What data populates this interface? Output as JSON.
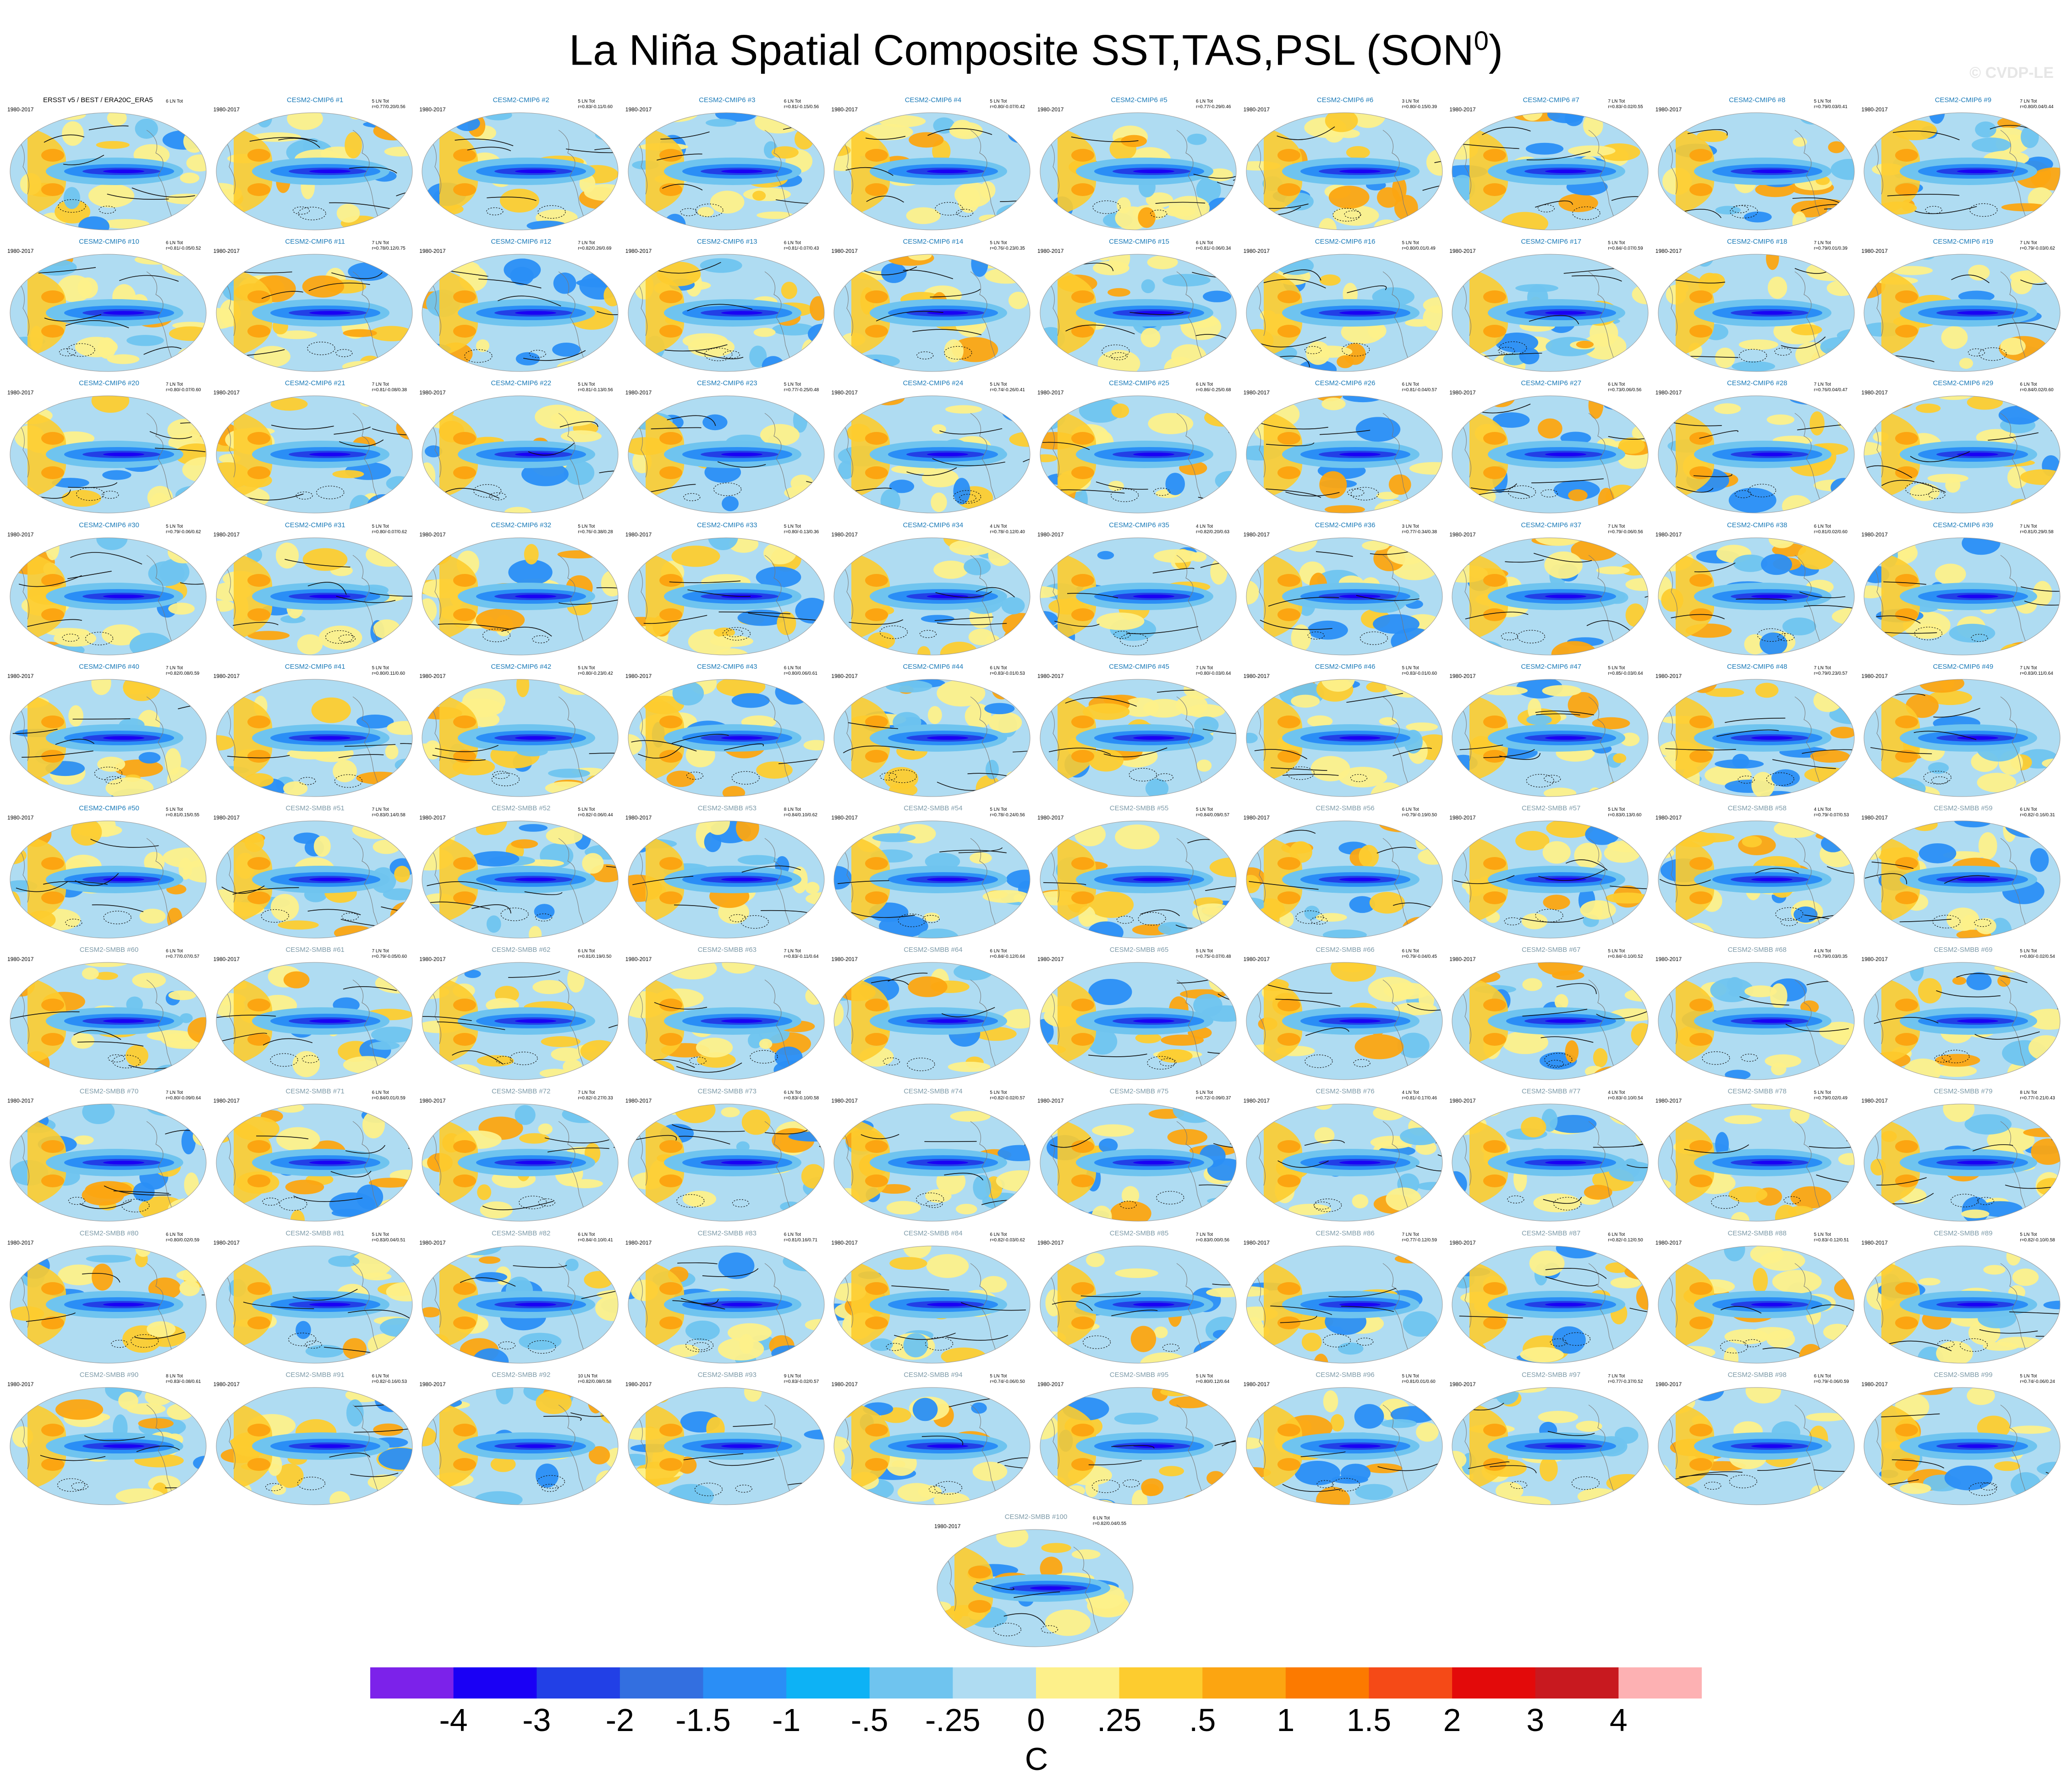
{
  "figure": {
    "title_main": "La Niña Spatial Composite SST,TAS,PSL (SON",
    "title_sup": "0",
    "title_close": ")",
    "copyright": "© CVDP-LE"
  },
  "panels": [
    {
      "name": "ERSST v5 / BEST / ERA20C_ERA5",
      "years": "1980-2017",
      "count": "6 LN Tot",
      "stats": "",
      "kind": "obs"
    },
    {
      "name": "CESM2-CMIP6 #1",
      "years": "1980-2017",
      "count": "5 LN Tot",
      "stats": "r=0.77/0.20/0.56",
      "kind": "cmip6"
    },
    {
      "name": "CESM2-CMIP6 #2",
      "years": "1980-2017",
      "count": "5 LN Tot",
      "stats": "r=0.83/-0.11/0.60",
      "kind": "cmip6"
    },
    {
      "name": "CESM2-CMIP6 #3",
      "years": "1980-2017",
      "count": "6 LN Tot",
      "stats": "r=0.81/-0.15/0.56",
      "kind": "cmip6"
    },
    {
      "name": "CESM2-CMIP6 #4",
      "years": "1980-2017",
      "count": "5 LN Tot",
      "stats": "r=0.80/-0.07/0.42",
      "kind": "cmip6"
    },
    {
      "name": "CESM2-CMIP6 #5",
      "years": "1980-2017",
      "count": "6 LN Tot",
      "stats": "r=0.77/-0.29/0.46",
      "kind": "cmip6"
    },
    {
      "name": "CESM2-CMIP6 #6",
      "years": "1980-2017",
      "count": "3 LN Tot",
      "stats": "r=0.80/-0.15/0.39",
      "kind": "cmip6"
    },
    {
      "name": "CESM2-CMIP6 #7",
      "years": "1980-2017",
      "count": "7 LN Tot",
      "stats": "r=0.83/-0.02/0.55",
      "kind": "cmip6"
    },
    {
      "name": "CESM2-CMIP6 #8",
      "years": "1980-2017",
      "count": "5 LN Tot",
      "stats": "r=0.79/0.03/0.41",
      "kind": "cmip6"
    },
    {
      "name": "CESM2-CMIP6 #9",
      "years": "1980-2017",
      "count": "7 LN Tot",
      "stats": "r=0.80/0.04/0.44",
      "kind": "cmip6"
    },
    {
      "name": "CESM2-CMIP6 #10",
      "years": "1980-2017",
      "count": "6 LN Tot",
      "stats": "r=0.81/-0.05/0.52",
      "kind": "cmip6"
    },
    {
      "name": "CESM2-CMIP6 #11",
      "years": "1980-2017",
      "count": "7 LN Tot",
      "stats": "r=0.78/0.12/0.75",
      "kind": "cmip6"
    },
    {
      "name": "CESM2-CMIP6 #12",
      "years": "1980-2017",
      "count": "7 LN Tot",
      "stats": "r=0.82/0.26/0.69",
      "kind": "cmip6"
    },
    {
      "name": "CESM2-CMIP6 #13",
      "years": "1980-2017",
      "count": "6 LN Tot",
      "stats": "r=0.81/-0.07/0.43",
      "kind": "cmip6"
    },
    {
      "name": "CESM2-CMIP6 #14",
      "years": "1980-2017",
      "count": "5 LN Tot",
      "stats": "r=0.76/-0.23/0.35",
      "kind": "cmip6"
    },
    {
      "name": "CESM2-CMIP6 #15",
      "years": "1980-2017",
      "count": "6 LN Tot",
      "stats": "r=0.81/-0.06/0.34",
      "kind": "cmip6"
    },
    {
      "name": "CESM2-CMIP6 #16",
      "years": "1980-2017",
      "count": "5 LN Tot",
      "stats": "r=0.80/0.01/0.49",
      "kind": "cmip6"
    },
    {
      "name": "CESM2-CMIP6 #17",
      "years": "1980-2017",
      "count": "5 LN Tot",
      "stats": "r=0.84/-0.07/0.59",
      "kind": "cmip6"
    },
    {
      "name": "CESM2-CMIP6 #18",
      "years": "1980-2017",
      "count": "7 LN Tot",
      "stats": "r=0.79/0.01/0.39",
      "kind": "cmip6"
    },
    {
      "name": "CESM2-CMIP6 #19",
      "years": "1980-2017",
      "count": "7 LN Tot",
      "stats": "r=0.79/-0.03/0.62",
      "kind": "cmip6"
    },
    {
      "name": "CESM2-CMIP6 #20",
      "years": "1980-2017",
      "count": "7 LN Tot",
      "stats": "r=0.80/-0.07/0.60",
      "kind": "cmip6"
    },
    {
      "name": "CESM2-CMIP6 #21",
      "years": "1980-2017",
      "count": "7 LN Tot",
      "stats": "r=0.81/-0.08/0.38",
      "kind": "cmip6"
    },
    {
      "name": "CESM2-CMIP6 #22",
      "years": "1980-2017",
      "count": "5 LN Tot",
      "stats": "r=0.81/-0.13/0.56",
      "kind": "cmip6"
    },
    {
      "name": "CESM2-CMIP6 #23",
      "years": "1980-2017",
      "count": "5 LN Tot",
      "stats": "r=0.77/-0.25/0.48",
      "kind": "cmip6"
    },
    {
      "name": "CESM2-CMIP6 #24",
      "years": "1980-2017",
      "count": "5 LN Tot",
      "stats": "r=0.74/-0.26/0.41",
      "kind": "cmip6"
    },
    {
      "name": "CESM2-CMIP6 #25",
      "years": "1980-2017",
      "count": "6 LN Tot",
      "stats": "r=0.86/-0.25/0.68",
      "kind": "cmip6"
    },
    {
      "name": "CESM2-CMIP6 #26",
      "years": "1980-2017",
      "count": "6 LN Tot",
      "stats": "r=0.81/-0.04/0.57",
      "kind": "cmip6"
    },
    {
      "name": "CESM2-CMIP6 #27",
      "years": "1980-2017",
      "count": "6 LN Tot",
      "stats": "r=0.73/0.06/0.56",
      "kind": "cmip6"
    },
    {
      "name": "CESM2-CMIP6 #28",
      "years": "1980-2017",
      "count": "7 LN Tot",
      "stats": "r=0.76/0.04/0.47",
      "kind": "cmip6"
    },
    {
      "name": "CESM2-CMIP6 #29",
      "years": "1980-2017",
      "count": "6 LN Tot",
      "stats": "r=0.84/0.02/0.60",
      "kind": "cmip6"
    },
    {
      "name": "CESM2-CMIP6 #30",
      "years": "1980-2017",
      "count": "5 LN Tot",
      "stats": "r=0.79/-0.06/0.62",
      "kind": "cmip6"
    },
    {
      "name": "CESM2-CMIP6 #31",
      "years": "1980-2017",
      "count": "5 LN Tot",
      "stats": "r=0.80/-0.07/0.62",
      "kind": "cmip6"
    },
    {
      "name": "CESM2-CMIP6 #32",
      "years": "1980-2017",
      "count": "5 LN Tot",
      "stats": "r=0.76/-0.38/0.28",
      "kind": "cmip6"
    },
    {
      "name": "CESM2-CMIP6 #33",
      "years": "1980-2017",
      "count": "5 LN Tot",
      "stats": "r=0.80/-0.13/0.36",
      "kind": "cmip6"
    },
    {
      "name": "CESM2-CMIP6 #34",
      "years": "1980-2017",
      "count": "4 LN Tot",
      "stats": "r=0.78/-0.12/0.40",
      "kind": "cmip6"
    },
    {
      "name": "CESM2-CMIP6 #35",
      "years": "1980-2017",
      "count": "4 LN Tot",
      "stats": "r=0.82/0.20/0.63",
      "kind": "cmip6"
    },
    {
      "name": "CESM2-CMIP6 #36",
      "years": "1980-2017",
      "count": "3 LN Tot",
      "stats": "r=0.77/-0.34/0.38",
      "kind": "cmip6"
    },
    {
      "name": "CESM2-CMIP6 #37",
      "years": "1980-2017",
      "count": "7 LN Tot",
      "stats": "r=0.79/-0.06/0.56",
      "kind": "cmip6"
    },
    {
      "name": "CESM2-CMIP6 #38",
      "years": "1980-2017",
      "count": "6 LN Tot",
      "stats": "r=0.81/0.02/0.60",
      "kind": "cmip6"
    },
    {
      "name": "CESM2-CMIP6 #39",
      "years": "1980-2017",
      "count": "7 LN Tot",
      "stats": "r=0.81/0.29/0.58",
      "kind": "cmip6"
    },
    {
      "name": "CESM2-CMIP6 #40",
      "years": "1980-2017",
      "count": "7 LN Tot",
      "stats": "r=0.82/0.08/0.59",
      "kind": "cmip6"
    },
    {
      "name": "CESM2-CMIP6 #41",
      "years": "1980-2017",
      "count": "5 LN Tot",
      "stats": "r=0.80/0.11/0.60",
      "kind": "cmip6"
    },
    {
      "name": "CESM2-CMIP6 #42",
      "years": "1980-2017",
      "count": "5 LN Tot",
      "stats": "r=0.80/-0.23/0.42",
      "kind": "cmip6"
    },
    {
      "name": "CESM2-CMIP6 #43",
      "years": "1980-2017",
      "count": "6 LN Tot",
      "stats": "r=0.80/0.06/0.61",
      "kind": "cmip6"
    },
    {
      "name": "CESM2-CMIP6 #44",
      "years": "1980-2017",
      "count": "6 LN Tot",
      "stats": "r=0.83/-0.01/0.53",
      "kind": "cmip6"
    },
    {
      "name": "CESM2-CMIP6 #45",
      "years": "1980-2017",
      "count": "7 LN Tot",
      "stats": "r=0.80/-0.03/0.64",
      "kind": "cmip6"
    },
    {
      "name": "CESM2-CMIP6 #46",
      "years": "1980-2017",
      "count": "5 LN Tot",
      "stats": "r=0.83/-0.01/0.60",
      "kind": "cmip6"
    },
    {
      "name": "CESM2-CMIP6 #47",
      "years": "1980-2017",
      "count": "5 LN Tot",
      "stats": "r=0.85/-0.03/0.64",
      "kind": "cmip6"
    },
    {
      "name": "CESM2-CMIP6 #48",
      "years": "1980-2017",
      "count": "7 LN Tot",
      "stats": "r=0.79/0.23/0.57",
      "kind": "cmip6"
    },
    {
      "name": "CESM2-CMIP6 #49",
      "years": "1980-2017",
      "count": "7 LN Tot",
      "stats": "r=0.83/0.11/0.64",
      "kind": "cmip6"
    },
    {
      "name": "CESM2-CMIP6 #50",
      "years": "1980-2017",
      "count": "5 LN Tot",
      "stats": "r=0.81/0.15/0.55",
      "kind": "cmip6"
    },
    {
      "name": "CESM2-SMBB #51",
      "years": "1980-2017",
      "count": "7 LN Tot",
      "stats": "r=0.83/0.14/0.58",
      "kind": "smbb"
    },
    {
      "name": "CESM2-SMBB #52",
      "years": "1980-2017",
      "count": "5 LN Tot",
      "stats": "r=0.82/-0.06/0.44",
      "kind": "smbb"
    },
    {
      "name": "CESM2-SMBB #53",
      "years": "1980-2017",
      "count": "8 LN Tot",
      "stats": "r=0.84/0.10/0.62",
      "kind": "smbb"
    },
    {
      "name": "CESM2-SMBB #54",
      "years": "1980-2017",
      "count": "5 LN Tot",
      "stats": "r=0.78/-0.24/0.56",
      "kind": "smbb"
    },
    {
      "name": "CESM2-SMBB #55",
      "years": "1980-2017",
      "count": "5 LN Tot",
      "stats": "r=0.84/0.09/0.57",
      "kind": "smbb"
    },
    {
      "name": "CESM2-SMBB #56",
      "years": "1980-2017",
      "count": "6 LN Tot",
      "stats": "r=0.79/-0.19/0.50",
      "kind": "smbb"
    },
    {
      "name": "CESM2-SMBB #57",
      "years": "1980-2017",
      "count": "5 LN Tot",
      "stats": "r=0.83/0.13/0.60",
      "kind": "smbb"
    },
    {
      "name": "CESM2-SMBB #58",
      "years": "1980-2017",
      "count": "4 LN Tot",
      "stats": "r=0.79/-0.07/0.53",
      "kind": "smbb"
    },
    {
      "name": "CESM2-SMBB #59",
      "years": "1980-2017",
      "count": "6 LN Tot",
      "stats": "r=0.82/-0.16/0.31",
      "kind": "smbb"
    },
    {
      "name": "CESM2-SMBB #60",
      "years": "1980-2017",
      "count": "6 LN Tot",
      "stats": "r=0.77/0.07/0.57",
      "kind": "smbb"
    },
    {
      "name": "CESM2-SMBB #61",
      "years": "1980-2017",
      "count": "7 LN Tot",
      "stats": "r=0.79/-0.05/0.60",
      "kind": "smbb"
    },
    {
      "name": "CESM2-SMBB #62",
      "years": "1980-2017",
      "count": "6 LN Tot",
      "stats": "r=0.81/0.19/0.50",
      "kind": "smbb"
    },
    {
      "name": "CESM2-SMBB #63",
      "years": "1980-2017",
      "count": "7 LN Tot",
      "stats": "r=0.83/-0.11/0.64",
      "kind": "smbb"
    },
    {
      "name": "CESM2-SMBB #64",
      "years": "1980-2017",
      "count": "6 LN Tot",
      "stats": "r=0.84/-0.12/0.64",
      "kind": "smbb"
    },
    {
      "name": "CESM2-SMBB #65",
      "years": "1980-2017",
      "count": "5 LN Tot",
      "stats": "r=0.75/-0.07/0.48",
      "kind": "smbb"
    },
    {
      "name": "CESM2-SMBB #66",
      "years": "1980-2017",
      "count": "6 LN Tot",
      "stats": "r=0.79/-0.04/0.45",
      "kind": "smbb"
    },
    {
      "name": "CESM2-SMBB #67",
      "years": "1980-2017",
      "count": "5 LN Tot",
      "stats": "r=0.84/-0.10/0.52",
      "kind": "smbb"
    },
    {
      "name": "CESM2-SMBB #68",
      "years": "1980-2017",
      "count": "4 LN Tot",
      "stats": "r=0.79/0.03/0.35",
      "kind": "smbb"
    },
    {
      "name": "CESM2-SMBB #69",
      "years": "1980-2017",
      "count": "5 LN Tot",
      "stats": "r=0.80/-0.02/0.54",
      "kind": "smbb"
    },
    {
      "name": "CESM2-SMBB #70",
      "years": "1980-2017",
      "count": "7 LN Tot",
      "stats": "r=0.80/-0.09/0.64",
      "kind": "smbb"
    },
    {
      "name": "CESM2-SMBB #71",
      "years": "1980-2017",
      "count": "6 LN Tot",
      "stats": "r=0.84/0.01/0.59",
      "kind": "smbb"
    },
    {
      "name": "CESM2-SMBB #72",
      "years": "1980-2017",
      "count": "7 LN Tot",
      "stats": "r=0.82/-0.27/0.33",
      "kind": "smbb"
    },
    {
      "name": "CESM2-SMBB #73",
      "years": "1980-2017",
      "count": "6 LN Tot",
      "stats": "r=0.83/-0.10/0.58",
      "kind": "smbb"
    },
    {
      "name": "CESM2-SMBB #74",
      "years": "1980-2017",
      "count": "5 LN Tot",
      "stats": "r=0.82/-0.02/0.57",
      "kind": "smbb"
    },
    {
      "name": "CESM2-SMBB #75",
      "years": "1980-2017",
      "count": "5 LN Tot",
      "stats": "r=0.72/-0.09/0.37",
      "kind": "smbb"
    },
    {
      "name": "CESM2-SMBB #76",
      "years": "1980-2017",
      "count": "4 LN Tot",
      "stats": "r=0.81/-0.17/0.46",
      "kind": "smbb"
    },
    {
      "name": "CESM2-SMBB #77",
      "years": "1980-2017",
      "count": "4 LN Tot",
      "stats": "r=0.83/-0.10/0.54",
      "kind": "smbb"
    },
    {
      "name": "CESM2-SMBB #78",
      "years": "1980-2017",
      "count": "5 LN Tot",
      "stats": "r=0.79/0.02/0.49",
      "kind": "smbb"
    },
    {
      "name": "CESM2-SMBB #79",
      "years": "1980-2017",
      "count": "8 LN Tot",
      "stats": "r=0.77/-0.21/0.43",
      "kind": "smbb"
    },
    {
      "name": "CESM2-SMBB #80",
      "years": "1980-2017",
      "count": "6 LN Tot",
      "stats": "r=0.80/0.02/0.59",
      "kind": "smbb"
    },
    {
      "name": "CESM2-SMBB #81",
      "years": "1980-2017",
      "count": "5 LN Tot",
      "stats": "r=0.83/0.04/0.51",
      "kind": "smbb"
    },
    {
      "name": "CESM2-SMBB #82",
      "years": "1980-2017",
      "count": "6 LN Tot",
      "stats": "r=0.84/-0.10/0.41",
      "kind": "smbb"
    },
    {
      "name": "CESM2-SMBB #83",
      "years": "1980-2017",
      "count": "6 LN Tot",
      "stats": "r=0.81/0.16/0.71",
      "kind": "smbb"
    },
    {
      "name": "CESM2-SMBB #84",
      "years": "1980-2017",
      "count": "6 LN Tot",
      "stats": "r=0.82/-0.03/0.62",
      "kind": "smbb"
    },
    {
      "name": "CESM2-SMBB #85",
      "years": "1980-2017",
      "count": "7 LN Tot",
      "stats": "r=0.83/0.00/0.56",
      "kind": "smbb"
    },
    {
      "name": "CESM2-SMBB #86",
      "years": "1980-2017",
      "count": "7 LN Tot",
      "stats": "r=0.77/-0.12/0.59",
      "kind": "smbb"
    },
    {
      "name": "CESM2-SMBB #87",
      "years": "1980-2017",
      "count": "6 LN Tot",
      "stats": "r=0.82/-0.12/0.50",
      "kind": "smbb"
    },
    {
      "name": "CESM2-SMBB #88",
      "years": "1980-2017",
      "count": "5 LN Tot",
      "stats": "r=0.83/-0.12/0.51",
      "kind": "smbb"
    },
    {
      "name": "CESM2-SMBB #89",
      "years": "1980-2017",
      "count": "5 LN Tot",
      "stats": "r=0.82/-0.10/0.58",
      "kind": "smbb"
    },
    {
      "name": "CESM2-SMBB #90",
      "years": "1980-2017",
      "count": "8 LN Tot",
      "stats": "r=0.83/-0.08/0.61",
      "kind": "smbb"
    },
    {
      "name": "CESM2-SMBB #91",
      "years": "1980-2017",
      "count": "6 LN Tot",
      "stats": "r=0.82/-0.16/0.53",
      "kind": "smbb"
    },
    {
      "name": "CESM2-SMBB #92",
      "years": "1980-2017",
      "count": "10 LN Tot",
      "stats": "r=0.82/0.08/0.58",
      "kind": "smbb"
    },
    {
      "name": "CESM2-SMBB #93",
      "years": "1980-2017",
      "count": "9 LN Tot",
      "stats": "r=0.83/-0.02/0.57",
      "kind": "smbb"
    },
    {
      "name": "CESM2-SMBB #94",
      "years": "1980-2017",
      "count": "5 LN Tot",
      "stats": "r=0.74/-0.06/0.50",
      "kind": "smbb"
    },
    {
      "name": "CESM2-SMBB #95",
      "years": "1980-2017",
      "count": "5 LN Tot",
      "stats": "r=0.80/0.12/0.64",
      "kind": "smbb"
    },
    {
      "name": "CESM2-SMBB #96",
      "years": "1980-2017",
      "count": "5 LN Tot",
      "stats": "r=0.81/0.01/0.60",
      "kind": "smbb"
    },
    {
      "name": "CESM2-SMBB #97",
      "years": "1980-2017",
      "count": "7 LN Tot",
      "stats": "r=0.77/-0.37/0.52",
      "kind": "smbb"
    },
    {
      "name": "CESM2-SMBB #98",
      "years": "1980-2017",
      "count": "6 LN Tot",
      "stats": "r=0.79/-0.06/0.59",
      "kind": "smbb"
    },
    {
      "name": "CESM2-SMBB #99",
      "years": "1980-2017",
      "count": "5 LN Tot",
      "stats": "r=0.74/-0.06/0.24",
      "kind": "smbb"
    },
    {
      "name": "CESM2-SMBB #100",
      "years": "1980-2017",
      "count": "6 LN Tot",
      "stats": "r=0.82/0.04/0.55",
      "kind": "smbb"
    }
  ],
  "colorbar": {
    "colors": [
      "#7c22ea",
      "#1a00f5",
      "#2240e6",
      "#336fe0",
      "#2a8ef6",
      "#0db2f5",
      "#6fc4ef",
      "#afdcf2",
      "#fdf08a",
      "#fdcc2f",
      "#fca511",
      "#fc7a00",
      "#f54a17",
      "#e30a0a",
      "#c8191f",
      "#fdb1b3"
    ],
    "ticks": [
      "-4",
      "-3",
      "-2",
      "-1.5",
      "-1",
      "-.5",
      "-.25",
      "0",
      ".25",
      ".5",
      "1",
      "1.5",
      "2",
      "3",
      "4"
    ],
    "unit": "C"
  },
  "map_colors": {
    "ocean_light": "#afdcf2",
    "ocean_mid": "#6fc4ef",
    "ocean_deep": "#2a8ef6",
    "nino_core": "#2240e6",
    "nino_center": "#1a00f5",
    "warm_light": "#fdf08a",
    "warm_mid": "#fdcc2f",
    "warm_high": "#fca511",
    "hot": "#f54a17",
    "contour": "#111111"
  }
}
